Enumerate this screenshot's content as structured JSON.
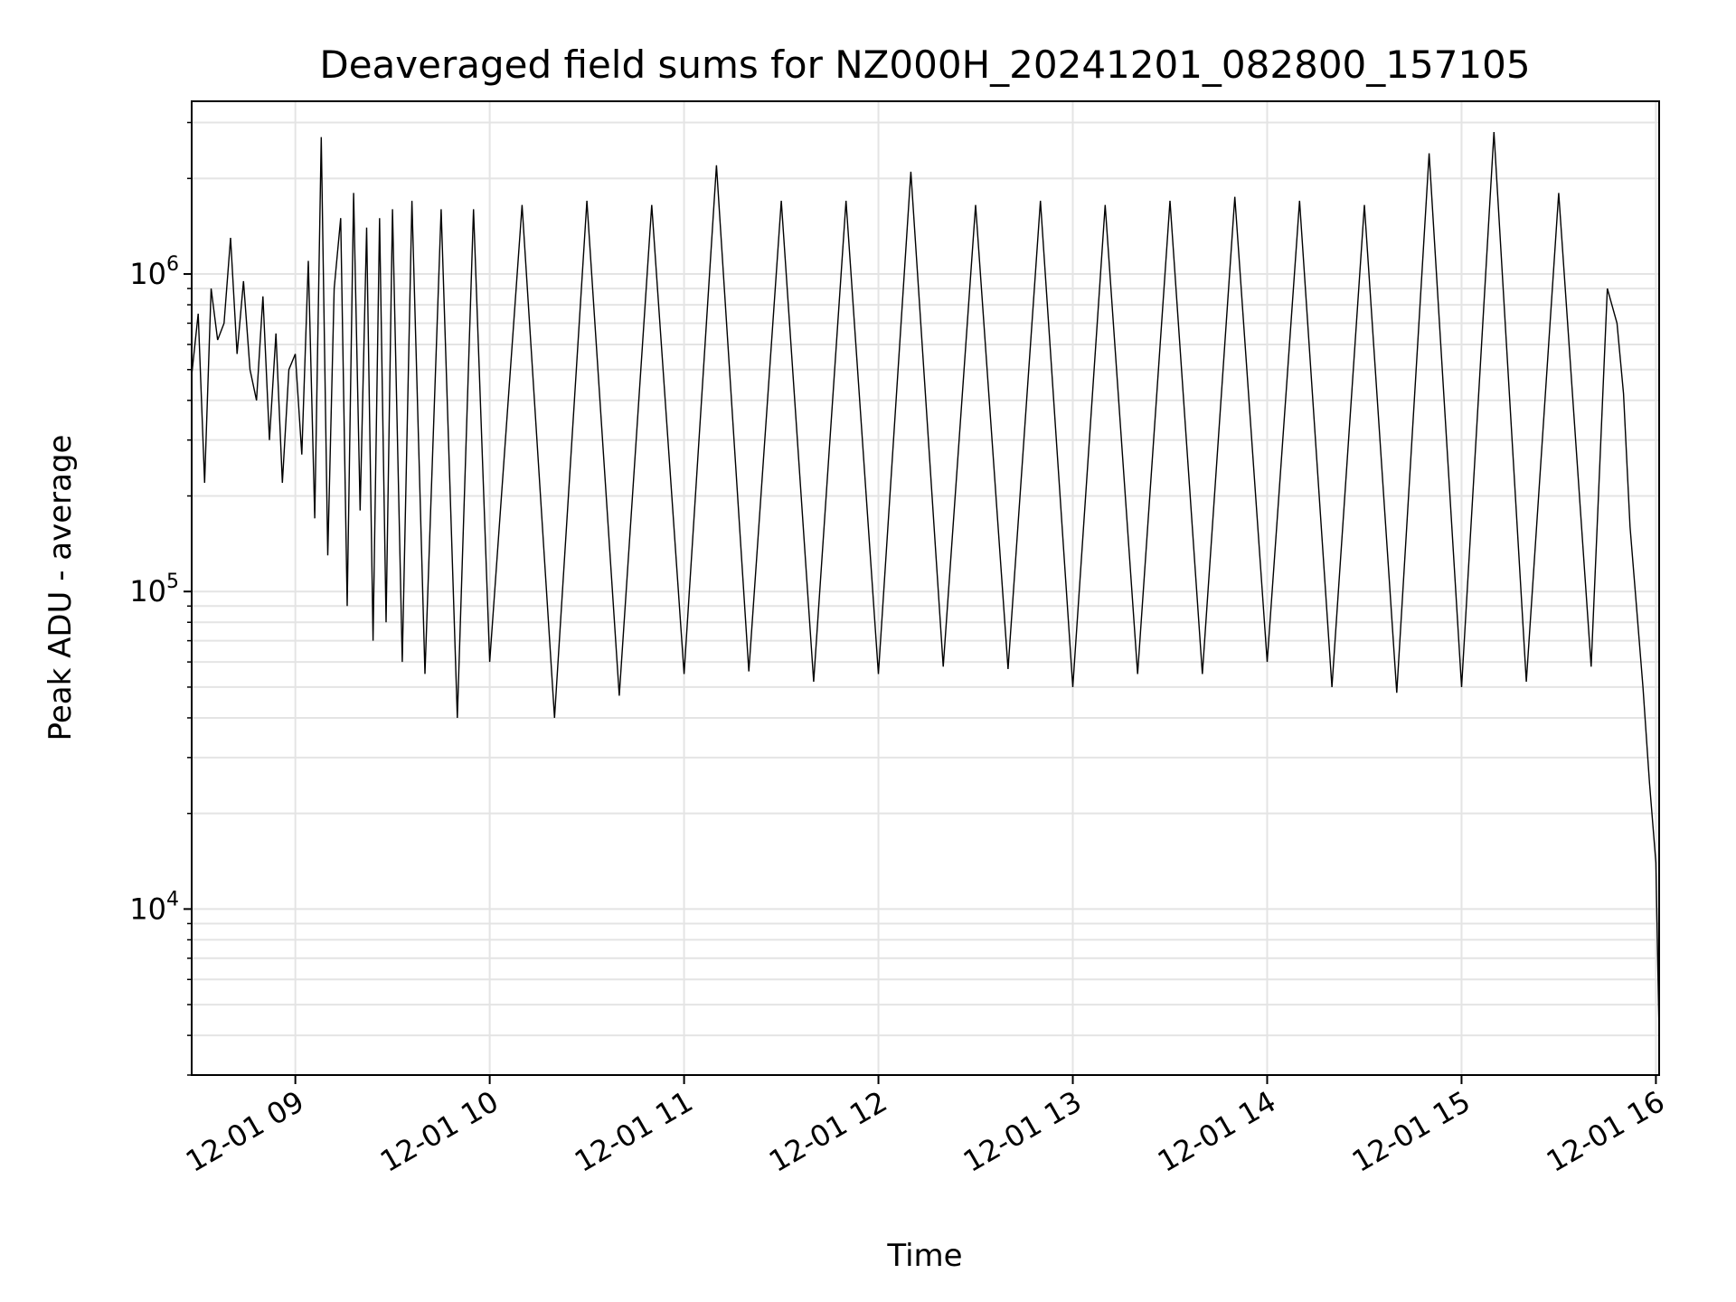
{
  "chart_data": {
    "type": "line",
    "title": "Deaveraged field sums for NZ000H_20241201_082800_157105",
    "xlabel": "Time",
    "ylabel": "Peak ADU - average",
    "yscale": "log",
    "xlim": [
      "2024-12-01 08:28",
      "2024-12-01 16:01"
    ],
    "ylim": [
      3000,
      3500000
    ],
    "grid": true,
    "x_ticks": [
      {
        "t": "2024-12-01 09:00",
        "label": "12-01 09"
      },
      {
        "t": "2024-12-01 10:00",
        "label": "12-01 10"
      },
      {
        "t": "2024-12-01 11:00",
        "label": "12-01 11"
      },
      {
        "t": "2024-12-01 12:00",
        "label": "12-01 12"
      },
      {
        "t": "2024-12-01 13:00",
        "label": "12-01 13"
      },
      {
        "t": "2024-12-01 14:00",
        "label": "12-01 14"
      },
      {
        "t": "2024-12-01 15:00",
        "label": "12-01 15"
      },
      {
        "t": "2024-12-01 16:00",
        "label": "12-01 16"
      }
    ],
    "y_ticks": [
      {
        "value": 10000,
        "base": "10",
        "exp": "4"
      },
      {
        "value": 100000,
        "base": "10",
        "exp": "5"
      },
      {
        "value": 1000000,
        "base": "10",
        "exp": "6"
      }
    ],
    "series": [
      {
        "color": "#000000",
        "x": [
          "2024-12-01 08:28",
          "2024-12-01 08:30",
          "2024-12-01 08:32",
          "2024-12-01 08:34",
          "2024-12-01 08:36",
          "2024-12-01 08:38",
          "2024-12-01 08:40",
          "2024-12-01 08:42",
          "2024-12-01 08:44",
          "2024-12-01 08:46",
          "2024-12-01 08:48",
          "2024-12-01 08:50",
          "2024-12-01 08:52",
          "2024-12-01 08:54",
          "2024-12-01 08:56",
          "2024-12-01 08:58",
          "2024-12-01 09:00",
          "2024-12-01 09:02",
          "2024-12-01 09:04",
          "2024-12-01 09:06",
          "2024-12-01 09:08",
          "2024-12-01 09:10",
          "2024-12-01 09:12",
          "2024-12-01 09:14",
          "2024-12-01 09:16",
          "2024-12-01 09:18",
          "2024-12-01 09:20",
          "2024-12-01 09:22",
          "2024-12-01 09:24",
          "2024-12-01 09:26",
          "2024-12-01 09:28",
          "2024-12-01 09:30",
          "2024-12-01 09:33",
          "2024-12-01 09:36",
          "2024-12-01 09:40",
          "2024-12-01 09:45",
          "2024-12-01 09:50",
          "2024-12-01 09:55",
          "2024-12-01 10:00",
          "2024-12-01 10:10",
          "2024-12-01 10:20",
          "2024-12-01 10:30",
          "2024-12-01 10:40",
          "2024-12-01 10:50",
          "2024-12-01 11:00",
          "2024-12-01 11:10",
          "2024-12-01 11:20",
          "2024-12-01 11:30",
          "2024-12-01 11:40",
          "2024-12-01 11:50",
          "2024-12-01 12:00",
          "2024-12-01 12:10",
          "2024-12-01 12:20",
          "2024-12-01 12:30",
          "2024-12-01 12:40",
          "2024-12-01 12:50",
          "2024-12-01 13:00",
          "2024-12-01 13:10",
          "2024-12-01 13:20",
          "2024-12-01 13:30",
          "2024-12-01 13:40",
          "2024-12-01 13:50",
          "2024-12-01 14:00",
          "2024-12-01 14:10",
          "2024-12-01 14:20",
          "2024-12-01 14:30",
          "2024-12-01 14:40",
          "2024-12-01 14:50",
          "2024-12-01 15:00",
          "2024-12-01 15:10",
          "2024-12-01 15:20",
          "2024-12-01 15:30",
          "2024-12-01 15:40",
          "2024-12-01 15:45",
          "2024-12-01 15:48",
          "2024-12-01 15:50",
          "2024-12-01 15:52",
          "2024-12-01 15:54",
          "2024-12-01 15:56",
          "2024-12-01 15:58",
          "2024-12-01 16:00",
          "2024-12-01 16:01"
        ],
        "y": [
          480000,
          750000,
          220000,
          900000,
          620000,
          700000,
          1300000,
          560000,
          950000,
          500000,
          400000,
          850000,
          300000,
          650000,
          220000,
          500000,
          560000,
          270000,
          1100000,
          170000,
          2700000,
          130000,
          900000,
          1500000,
          90000,
          1800000,
          180000,
          1400000,
          70000,
          1500000,
          80000,
          1600000,
          60000,
          1700000,
          55000,
          1600000,
          40000,
          1600000,
          60000,
          1650000,
          40000,
          1700000,
          47000,
          1650000,
          55000,
          2200000,
          56000,
          1700000,
          52000,
          1700000,
          55000,
          2100000,
          58000,
          1650000,
          57000,
          1700000,
          50000,
          1650000,
          55000,
          1700000,
          55000,
          1750000,
          60000,
          1700000,
          50000,
          1650000,
          48000,
          2400000,
          50000,
          2800000,
          52000,
          1800000,
          58000,
          900000,
          700000,
          420000,
          160000,
          90000,
          50000,
          25000,
          14000,
          4000
        ]
      }
    ]
  }
}
